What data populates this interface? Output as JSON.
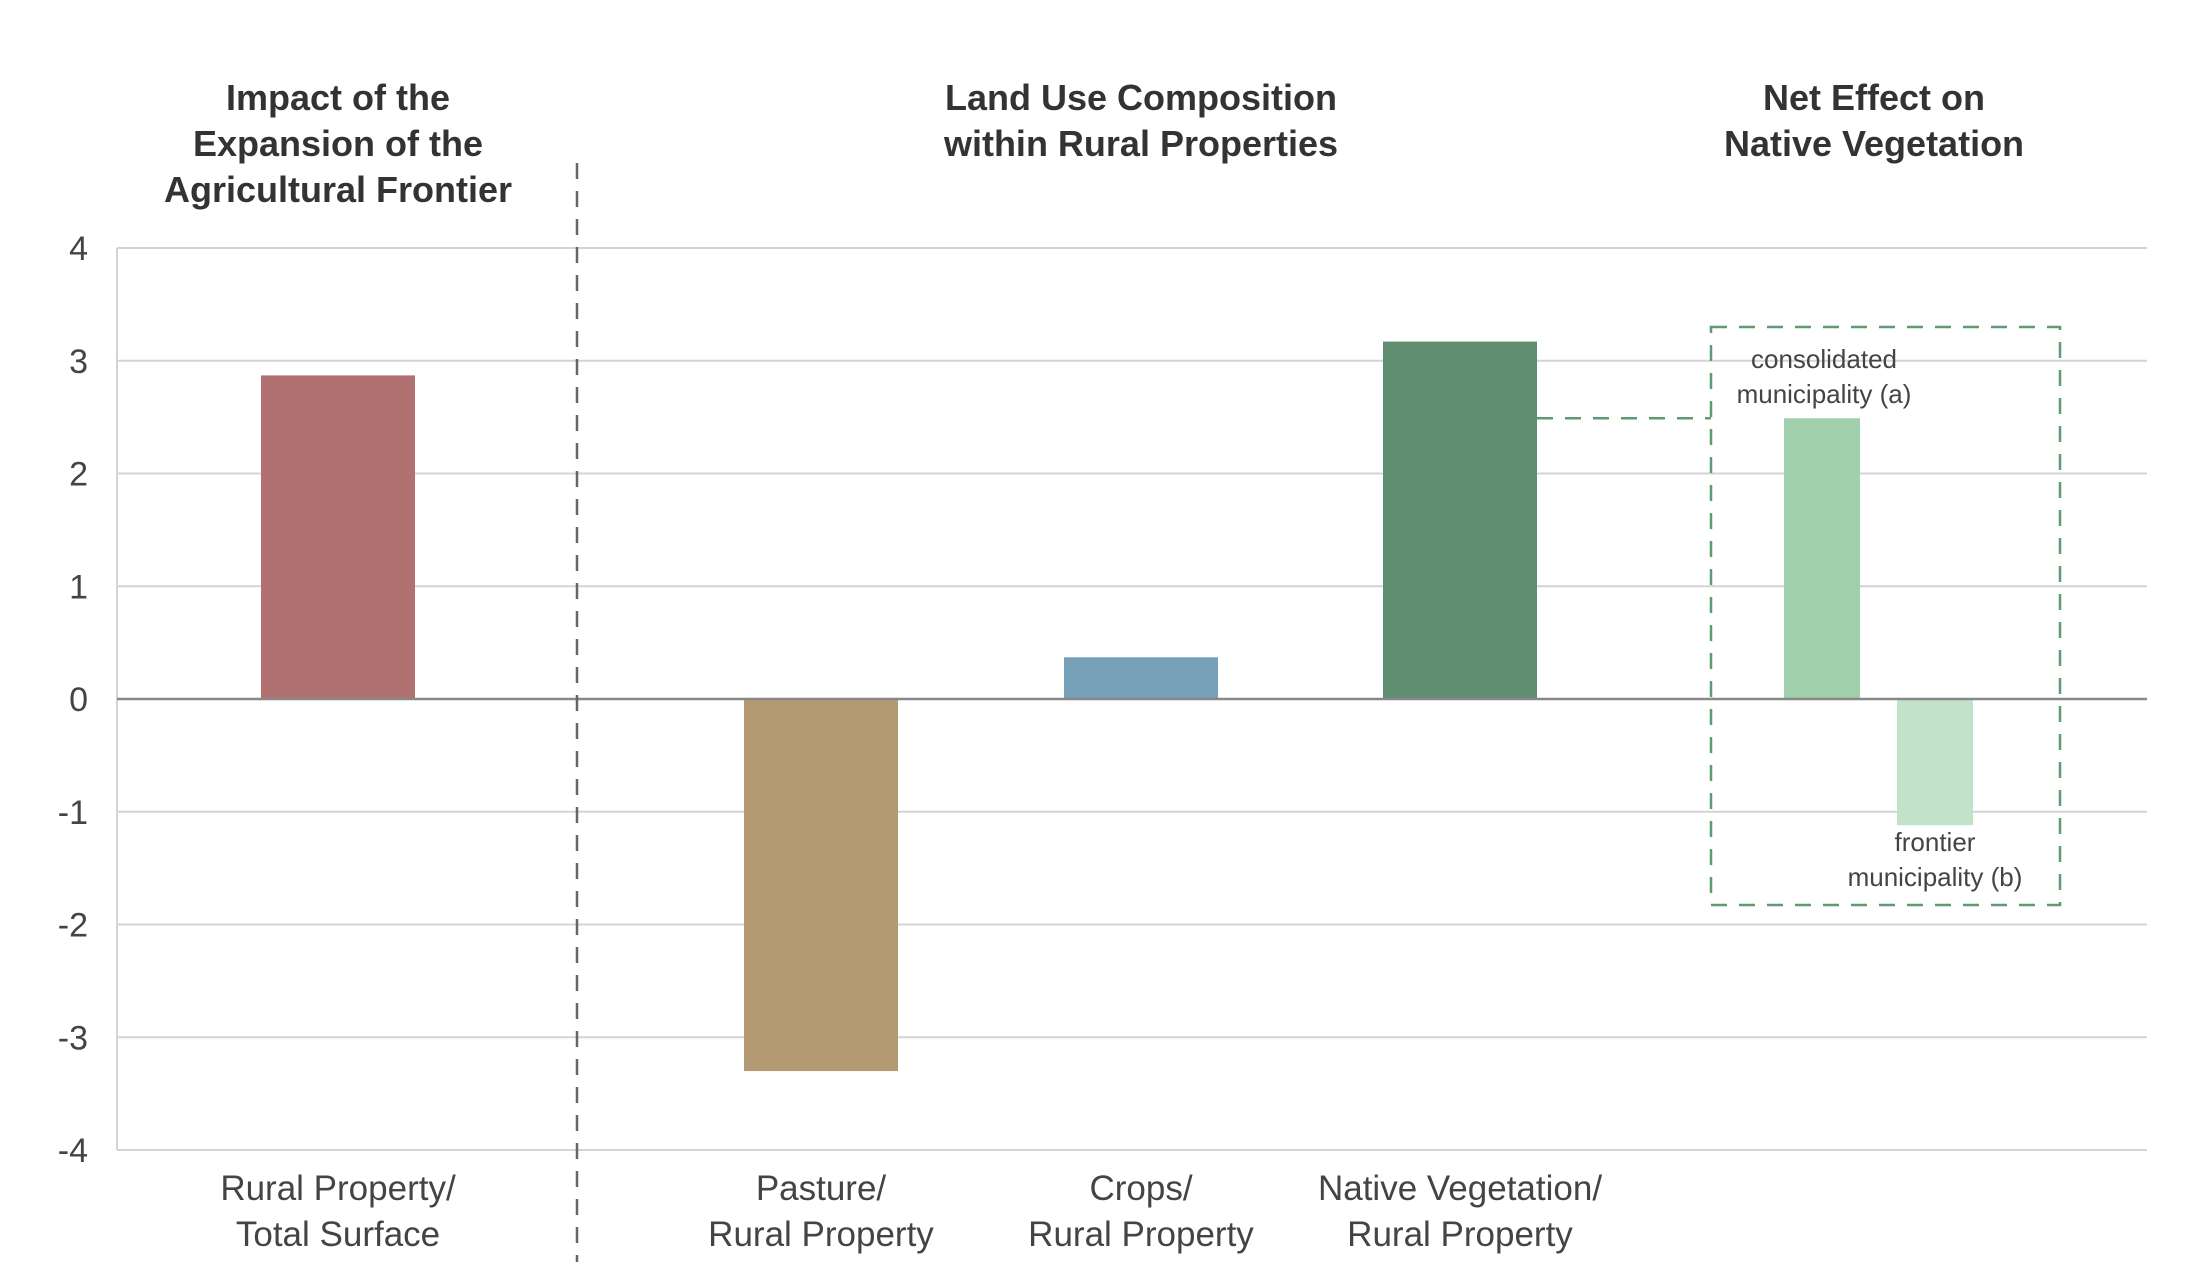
{
  "chart_data": {
    "type": "bar",
    "ylim": [
      -4,
      4
    ],
    "yticks": [
      "4",
      "3",
      "2",
      "1",
      "0",
      "-1",
      "-2",
      "-3",
      "-4"
    ],
    "grid": true,
    "section_titles": [
      [
        "Impact of the",
        "Expansion of the",
        "Agricultural Frontier"
      ],
      [
        "Land Use Composition",
        "within Rural Properties"
      ],
      [
        "Net Effect on",
        "Native Vegetation"
      ]
    ],
    "categories": [
      [
        "Rural Property/",
        "Total Surface"
      ],
      [
        "Pasture/",
        "Rural Property"
      ],
      [
        "Crops/",
        "Rural Property"
      ],
      [
        "Native Vegetation/",
        "Rural Property"
      ]
    ],
    "bars": [
      {
        "value": 2.87,
        "color": "#b07170"
      },
      {
        "value": -3.3,
        "color": "#b39a72"
      },
      {
        "value": 0.37,
        "color": "#769fb8"
      },
      {
        "value": 3.17,
        "color": "#5f8f70"
      },
      {
        "value": 2.49,
        "color": "#9fd0ab"
      },
      {
        "value": -1.12,
        "color": "#c2e2c9"
      }
    ],
    "annotations": {
      "a": [
        "consolidated",
        "municipality (a)"
      ],
      "b": [
        "frontier",
        "municipality (b)"
      ]
    },
    "colors": {
      "grid": "#d4d4d4",
      "zero_line": "#888888",
      "divider": "#666666",
      "dashed_box": "#5e9a72"
    }
  }
}
